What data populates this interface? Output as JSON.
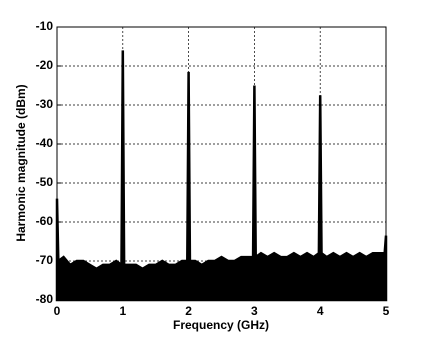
{
  "chart_data": {
    "type": "area",
    "xlabel": "Frequency (GHz)",
    "ylabel": "Harmonic magnitude (dBm)",
    "x": [
      0,
      0.02,
      0.1,
      0.2,
      0.3,
      0.4,
      0.5,
      0.6,
      0.7,
      0.8,
      0.9,
      0.98,
      1,
      1.02,
      1.1,
      1.2,
      1.3,
      1.4,
      1.5,
      1.6,
      1.7,
      1.8,
      1.9,
      1.98,
      2,
      2.02,
      2.1,
      2.2,
      2.3,
      2.4,
      2.5,
      2.6,
      2.7,
      2.8,
      2.9,
      2.98,
      3,
      3.02,
      3.1,
      3.2,
      3.3,
      3.4,
      3.5,
      3.6,
      3.7,
      3.8,
      3.9,
      3.98,
      4,
      4.02,
      4.1,
      4.2,
      4.3,
      4.4,
      4.5,
      4.6,
      4.7,
      4.8,
      4.9,
      4.98,
      5
    ],
    "values": [
      -54,
      -70,
      -69,
      -71,
      -70,
      -70,
      -71,
      -72,
      -71,
      -71,
      -70,
      -71,
      -16,
      -71,
      -71,
      -71,
      -72,
      -71,
      -71,
      -70,
      -71,
      -71,
      -70,
      -70,
      -21.5,
      -70,
      -70,
      -71,
      -70,
      -70,
      -69,
      -70,
      -70,
      -69,
      -69,
      -69,
      -25,
      -69,
      -68,
      -69,
      -68,
      -69,
      -69,
      -68,
      -69,
      -68,
      -69,
      -68,
      -27.5,
      -68,
      -69,
      -68,
      -69,
      -68,
      -69,
      -68,
      -69,
      -68,
      -68,
      -68,
      -63.5
    ],
    "color": "#000000",
    "xlim": [
      0,
      5
    ],
    "xticks": [
      0,
      1,
      2,
      3,
      4,
      5
    ],
    "ylim": [
      -80,
      -10
    ],
    "yticks": [
      -80,
      -70,
      -60,
      -50,
      -40,
      -30,
      -20,
      -10
    ],
    "grid": true
  }
}
